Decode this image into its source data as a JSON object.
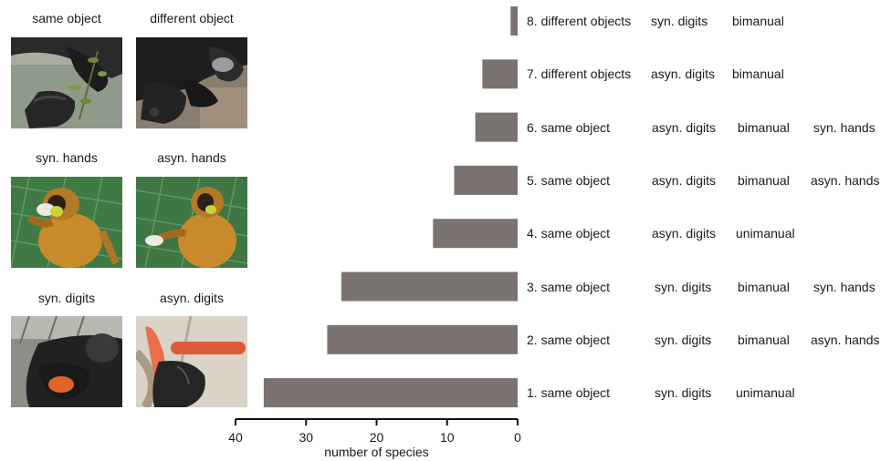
{
  "panels": [
    {
      "label": "same object",
      "photo": "gorilla-hand-holding-plant"
    },
    {
      "label": "different object",
      "photo": "gorilla-hands-two-objects"
    },
    {
      "label": "syn. hands",
      "photo": "spider-monkey-two-hands-food"
    },
    {
      "label": "asyn. hands",
      "photo": "spider-monkey-one-hand-food"
    },
    {
      "label": "syn. digits",
      "photo": "chimpanzee-holding-carrot"
    },
    {
      "label": "asyn. digits",
      "photo": "chimpanzee-hand-carrot-fingers"
    }
  ],
  "chart_data": {
    "type": "bar",
    "orientation": "horizontal",
    "x_reversed": true,
    "xlabel": "number of species",
    "ylabel": "",
    "title": "",
    "xlim": [
      0,
      40
    ],
    "xticks": [
      "40",
      "30",
      "20",
      "10",
      "0"
    ],
    "bar_color": "#7a7370",
    "categories": [
      {
        "name": "8. different objects",
        "digits": "syn. digits",
        "manual": "bimanual",
        "hands": "",
        "value": 1
      },
      {
        "name": "7. different objects",
        "digits": "asyn. digits",
        "manual": "bimanual",
        "hands": "",
        "value": 5
      },
      {
        "name": "6. same object",
        "digits": "asyn. digits",
        "manual": "bimanual",
        "hands": "syn. hands",
        "value": 6
      },
      {
        "name": "5. same object",
        "digits": "asyn. digits",
        "manual": "bimanual",
        "hands": "asyn. hands",
        "value": 9
      },
      {
        "name": "4. same object",
        "digits": "asyn. digits",
        "manual": "unimanual",
        "hands": "",
        "value": 12
      },
      {
        "name": "3. same object",
        "digits": "syn. digits",
        "manual": "bimanual",
        "hands": "syn. hands",
        "value": 25
      },
      {
        "name": "2. same object",
        "digits": "syn. digits",
        "manual": "bimanual",
        "hands": "asyn. hands",
        "value": 27
      },
      {
        "name": "1. same object",
        "digits": "syn. digits",
        "manual": "unimanual",
        "hands": "",
        "value": 36
      }
    ]
  }
}
